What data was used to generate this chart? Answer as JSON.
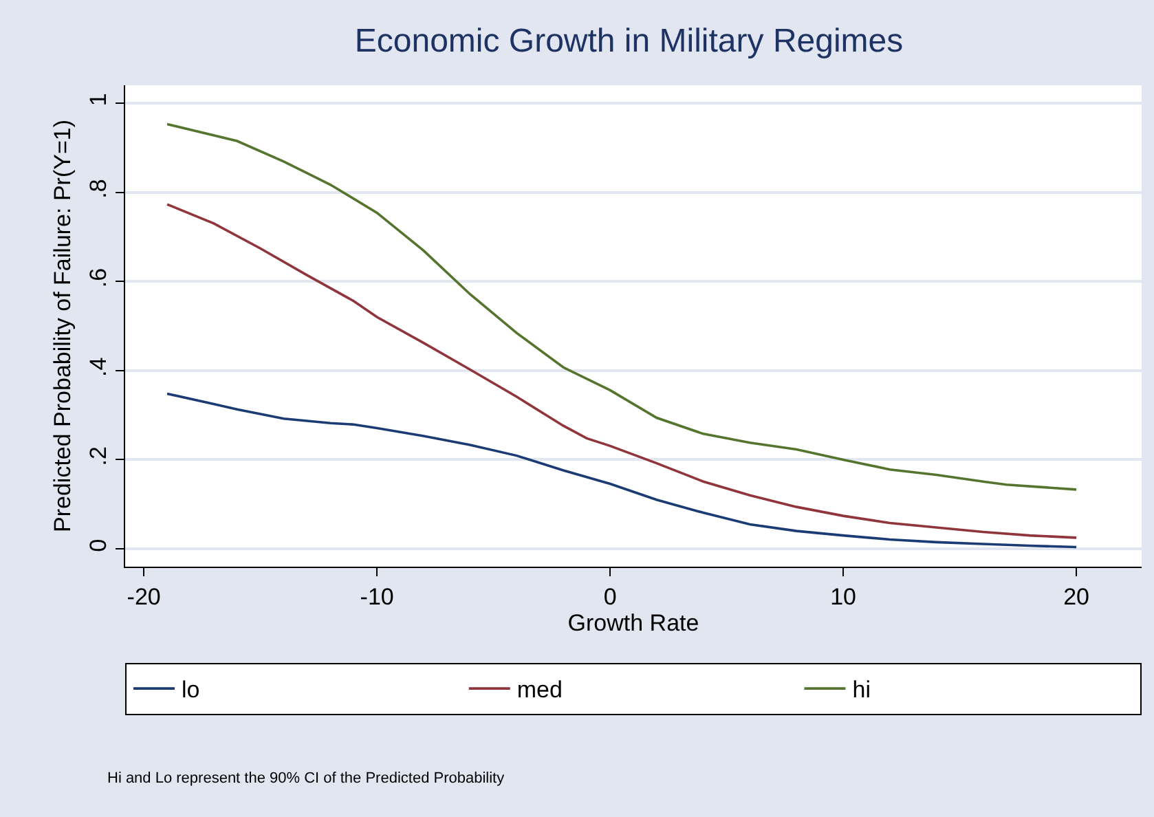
{
  "chart_data": {
    "type": "line",
    "title": "Economic Growth in Military Regimes",
    "xlabel": "Growth Rate",
    "ylabel": "Predicted Probability of Failure: Pr(Y=1)",
    "annotations": [
      "Hi and Lo represent the 90% CI of the Predicted Probability"
    ],
    "xlim": [
      -20.8,
      22.8
    ],
    "xticks": [
      -20,
      -10,
      0,
      10,
      20
    ],
    "ylim": [
      -0.04,
      1.04
    ],
    "yticks": [
      0,
      {
        "value": 0.2,
        "label": ".2"
      },
      {
        "value": 0.4,
        "label": ".4"
      },
      {
        "value": 0.6,
        "label": ".6"
      },
      {
        "value": 0.8,
        "label": ".8"
      },
      1
    ],
    "grid": "y",
    "legend": "bottom",
    "line_style": "solid",
    "marker": "none",
    "series": [
      {
        "name": "lo",
        "color": "#1a3b73",
        "x": [
          -19,
          -17,
          -16,
          -14,
          -12,
          -11,
          -10,
          -8,
          -6,
          -4,
          -2,
          0,
          2,
          4,
          6,
          8,
          10,
          12,
          14,
          16,
          18,
          20
        ],
        "values": [
          0.348,
          0.325,
          0.313,
          0.292,
          0.282,
          0.279,
          0.271,
          0.253,
          0.233,
          0.209,
          0.176,
          0.146,
          0.11,
          0.081,
          0.055,
          0.04,
          0.03,
          0.021,
          0.015,
          0.011,
          0.007,
          0.004
        ]
      },
      {
        "name": "med",
        "color": "#90353b",
        "x": [
          -19,
          -17,
          -15,
          -13,
          -11,
          -10,
          -8,
          -6,
          -4,
          -2,
          -1,
          0,
          2,
          4,
          6,
          8,
          10,
          12,
          14,
          16,
          18,
          20
        ],
        "values": [
          0.773,
          0.73,
          0.674,
          0.614,
          0.556,
          0.52,
          0.462,
          0.402,
          0.341,
          0.276,
          0.248,
          0.231,
          0.192,
          0.151,
          0.12,
          0.094,
          0.074,
          0.058,
          0.048,
          0.038,
          0.03,
          0.025
        ]
      },
      {
        "name": "hi",
        "color": "#55752f",
        "x": [
          -19,
          -16,
          -14,
          -12,
          -10,
          -8,
          -6,
          -4,
          -2,
          0,
          2,
          4,
          6,
          8,
          10,
          12,
          14,
          16,
          17,
          20
        ],
        "values": [
          0.953,
          0.915,
          0.869,
          0.817,
          0.754,
          0.669,
          0.571,
          0.484,
          0.407,
          0.356,
          0.294,
          0.258,
          0.238,
          0.223,
          0.2,
          0.178,
          0.166,
          0.151,
          0.144,
          0.133
        ]
      }
    ]
  }
}
